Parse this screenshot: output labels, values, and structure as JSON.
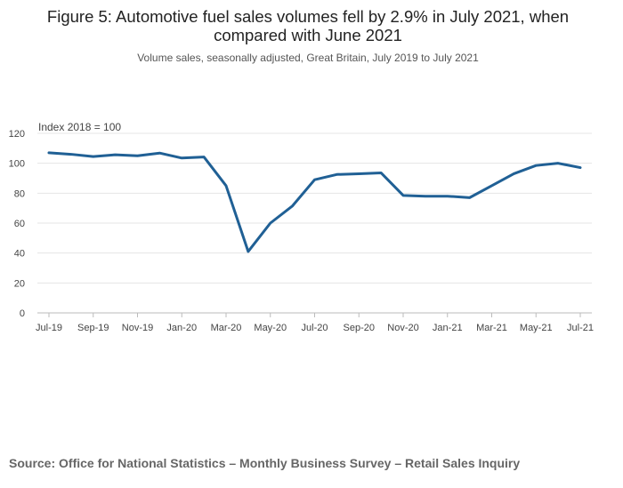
{
  "chart_data": {
    "type": "line",
    "title": "Figure 5: Automotive fuel sales volumes fell by 2.9% in July 2021, when compared with June 2021",
    "subtitle": "Volume sales, seasonally adjusted, Great Britain, July 2019 to July 2021",
    "ylabel": "Index 2018 = 100",
    "xlabel": "",
    "ylim": [
      0,
      120
    ],
    "yticks": [
      0,
      20,
      40,
      60,
      80,
      100,
      120
    ],
    "x": [
      "Jul-19",
      "Aug-19",
      "Sep-19",
      "Oct-19",
      "Nov-19",
      "Dec-19",
      "Jan-20",
      "Feb-20",
      "Mar-20",
      "Apr-20",
      "May-20",
      "Jun-20",
      "Jul-20",
      "Aug-20",
      "Sep-20",
      "Oct-20",
      "Nov-20",
      "Dec-20",
      "Jan-21",
      "Feb-21",
      "Mar-21",
      "Apr-21",
      "May-21",
      "Jun-21",
      "Jul-21"
    ],
    "xtick_labels": [
      "Jul-19",
      "Sep-19",
      "Nov-19",
      "Jan-20",
      "Mar-20",
      "May-20",
      "Jul-20",
      "Sep-20",
      "Nov-20",
      "Jan-21",
      "Mar-21",
      "May-21",
      "Jul-21"
    ],
    "series": [
      {
        "name": "Automotive fuel",
        "color": "#206095",
        "values": [
          107,
          106,
          104.5,
          105.7,
          105,
          106.8,
          103.5,
          104.2,
          85,
          41,
          60,
          71.5,
          89,
          92.5,
          93,
          93.6,
          78.5,
          78,
          78,
          77,
          85,
          93,
          98.5,
          100,
          97.1
        ]
      }
    ],
    "grid": true,
    "legend": "none"
  },
  "source": "Source: Office for National Statistics – Monthly Business Survey – Retail Sales Inquiry",
  "colors": {
    "grid": "#e5e5e5",
    "axis_text": "#444444",
    "line": "#206095"
  }
}
